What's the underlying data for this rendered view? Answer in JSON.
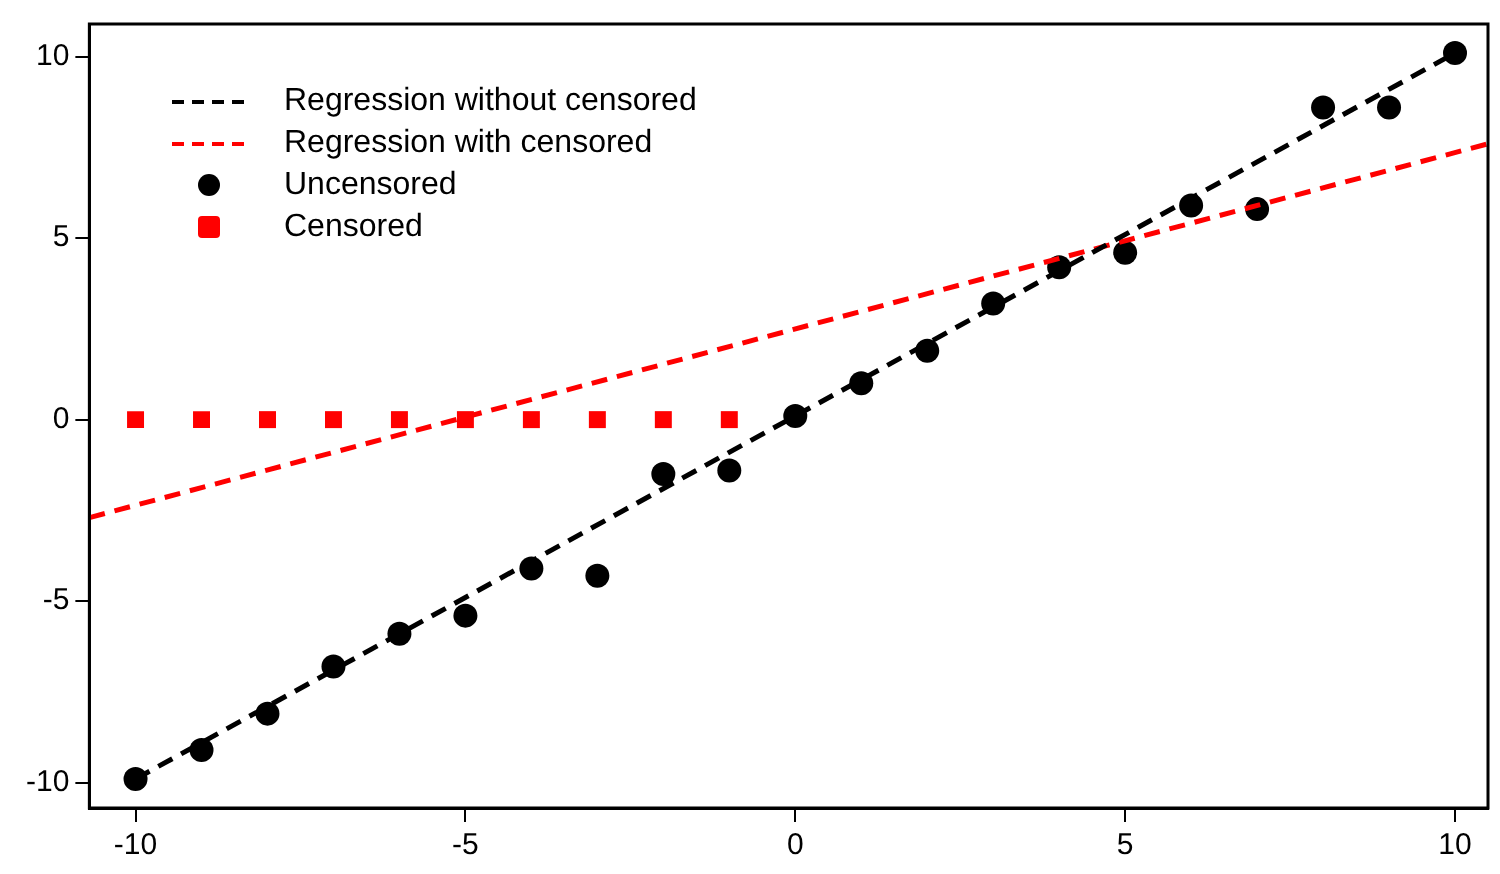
{
  "chart_data": {
    "type": "scatter",
    "xlim": [
      -10.7,
      10.5
    ],
    "ylim": [
      -10.7,
      10.9
    ],
    "xticks": [
      -10,
      -5,
      0,
      5,
      10
    ],
    "yticks": [
      -10,
      -5,
      0,
      5,
      10
    ],
    "grid": false,
    "legend": "top left",
    "marker": "circle",
    "series": [
      {
        "name": "Regression without censored",
        "type": "line",
        "line_style": "dashed",
        "marker": "none",
        "color": "#000000",
        "x": [
          -10,
          10
        ],
        "values": [
          -9.9,
          10.1
        ]
      },
      {
        "name": "Regression with censored",
        "type": "line",
        "line_style": "dashed",
        "marker": "none",
        "color": "#ff0000",
        "x": [
          -10.7,
          10.5
        ],
        "values": [
          -2.7,
          7.6
        ]
      },
      {
        "name": "Uncensored",
        "color": "#000000",
        "x": [
          -10,
          -9,
          -8,
          -7,
          -6,
          -5,
          -4,
          -3,
          -2,
          -1,
          0,
          1,
          2,
          3,
          4,
          5,
          6,
          7,
          8,
          9,
          10
        ],
        "values": [
          -9.9,
          -9.1,
          -8.1,
          -6.8,
          -5.9,
          -5.4,
          -4.1,
          -4.3,
          -1.5,
          -1.4,
          0.1,
          1.0,
          1.9,
          3.2,
          4.2,
          4.6,
          5.9,
          5.8,
          8.6,
          8.6,
          10.1
        ]
      },
      {
        "name": "Censored",
        "marker": "square",
        "color": "#ff0000",
        "x": [
          -10,
          -9,
          -8,
          -7,
          -6,
          -5,
          -4,
          -3,
          -2,
          -1
        ],
        "values": [
          0,
          0,
          0,
          0,
          0,
          0,
          0,
          0,
          0,
          0
        ]
      }
    ]
  }
}
